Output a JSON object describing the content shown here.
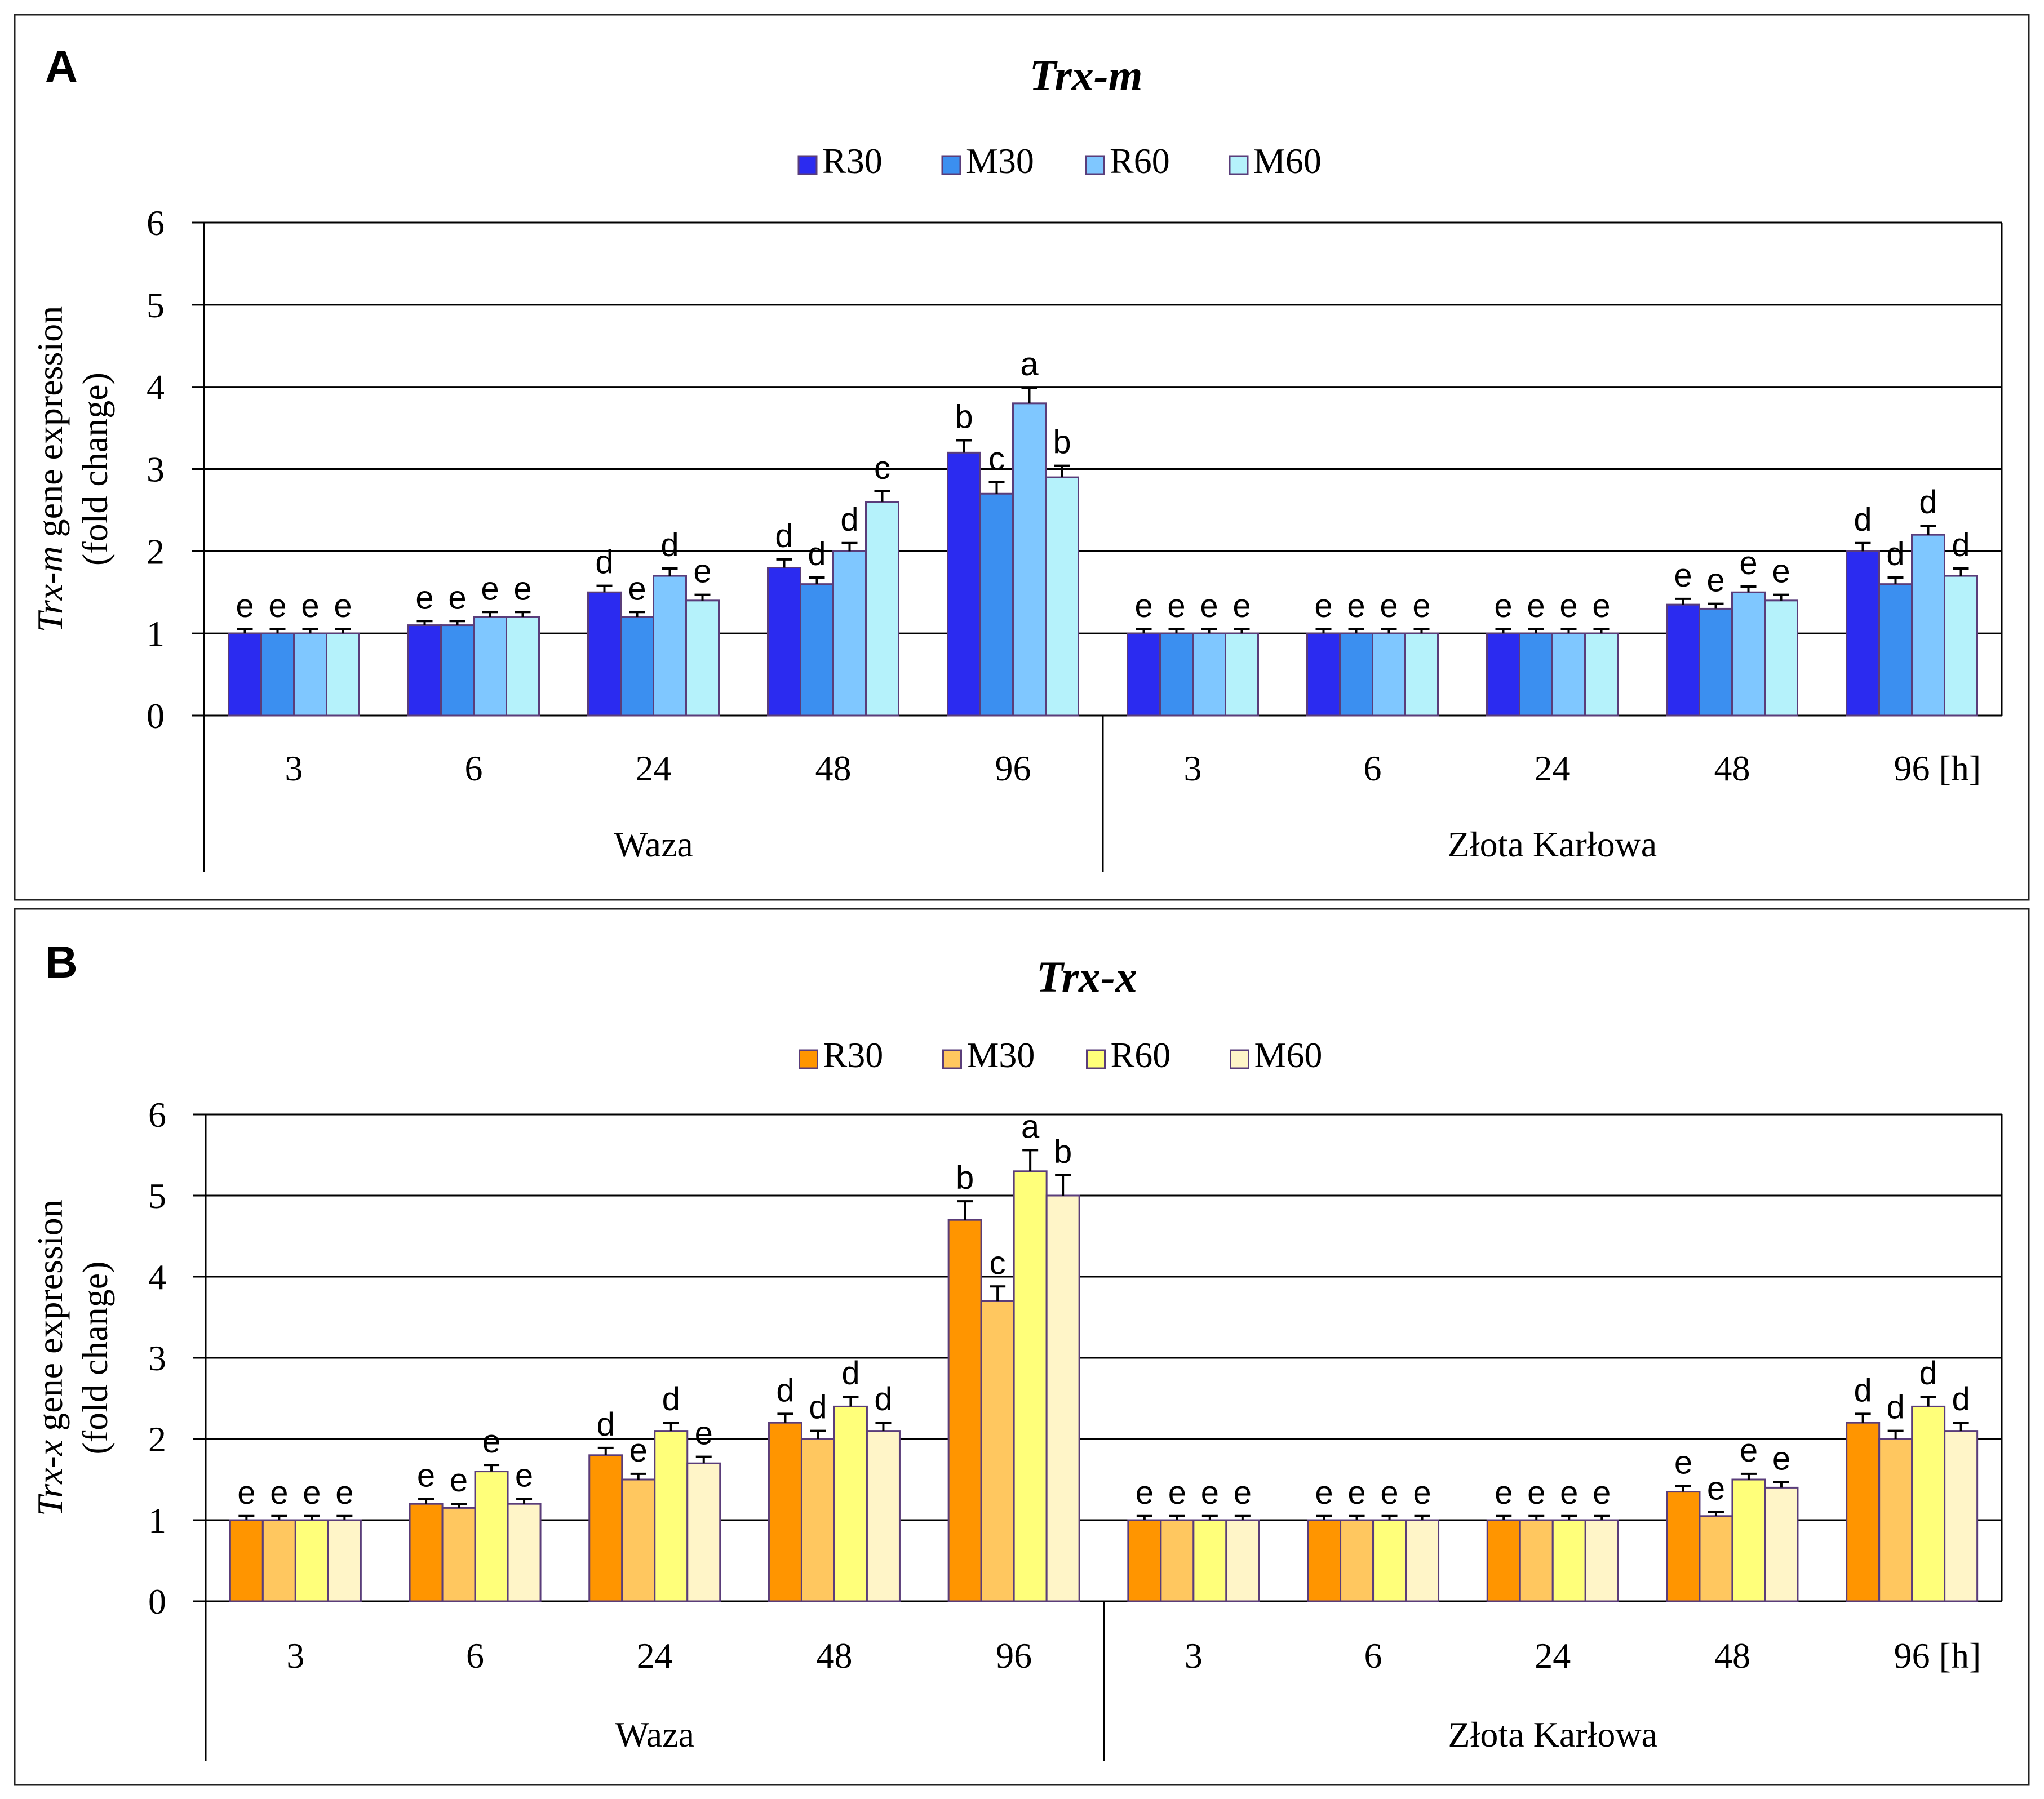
{
  "chart_data": [
    {
      "type": "bar",
      "panel_letter": "A",
      "title": "Trx-m",
      "ylabel_gene": "Trx-m",
      "ylabel_rest": " gene expression",
      "ylabel_line2": "(fold change)",
      "ylim": [
        0,
        6
      ],
      "yticks": [
        "0",
        "1",
        "2",
        "3",
        "4",
        "5",
        "6"
      ],
      "grid": true,
      "legend_position": "top-center",
      "time_labels": [
        "3",
        "6",
        "24",
        "48",
        "96",
        "3",
        "6",
        "24",
        "48",
        "96"
      ],
      "unit_label": "[h]",
      "groups": [
        "Waza",
        "Złota Karłowa"
      ],
      "series": [
        {
          "name": "R30",
          "color": "#2b2bf0",
          "values": [
            1.0,
            1.1,
            1.5,
            1.8,
            3.2,
            1.0,
            1.0,
            1.0,
            1.35,
            2.0
          ],
          "errors": [
            0.05,
            0.05,
            0.08,
            0.1,
            0.15,
            0.05,
            0.05,
            0.05,
            0.07,
            0.1
          ],
          "letters": [
            "e",
            "e",
            "d",
            "d",
            "b",
            "e",
            "e",
            "e",
            "e",
            "d"
          ]
        },
        {
          "name": "M30",
          "color": "#3b8ff0",
          "values": [
            1.0,
            1.1,
            1.2,
            1.6,
            2.7,
            1.0,
            1.0,
            1.0,
            1.3,
            1.6
          ],
          "errors": [
            0.05,
            0.05,
            0.06,
            0.08,
            0.14,
            0.05,
            0.05,
            0.05,
            0.06,
            0.08
          ],
          "letters": [
            "e",
            "e",
            "e",
            "d",
            "c",
            "e",
            "e",
            "e",
            "e",
            "d"
          ]
        },
        {
          "name": "R60",
          "color": "#7fc7ff",
          "values": [
            1.0,
            1.2,
            1.7,
            2.0,
            3.8,
            1.0,
            1.0,
            1.0,
            1.5,
            2.2
          ],
          "errors": [
            0.05,
            0.06,
            0.09,
            0.1,
            0.19,
            0.05,
            0.05,
            0.05,
            0.07,
            0.11
          ],
          "letters": [
            "e",
            "e",
            "d",
            "d",
            "a",
            "e",
            "e",
            "e",
            "e",
            "d"
          ]
        },
        {
          "name": "M60",
          "color": "#b5f2fb",
          "values": [
            1.0,
            1.2,
            1.4,
            2.6,
            2.9,
            1.0,
            1.0,
            1.0,
            1.4,
            1.7
          ],
          "errors": [
            0.05,
            0.06,
            0.07,
            0.13,
            0.14,
            0.05,
            0.05,
            0.05,
            0.07,
            0.09
          ],
          "letters": [
            "e",
            "e",
            "e",
            "c",
            "b",
            "e",
            "e",
            "e",
            "e",
            "d"
          ]
        }
      ]
    },
    {
      "type": "bar",
      "panel_letter": "B",
      "title": "Trx-x",
      "ylabel_gene": "Trx-x",
      "ylabel_rest": " gene expression",
      "ylabel_line2": "(fold change)",
      "ylim": [
        0,
        6
      ],
      "yticks": [
        "0",
        "1",
        "2",
        "3",
        "4",
        "5",
        "6"
      ],
      "grid": true,
      "legend_position": "top-center",
      "time_labels": [
        "3",
        "6",
        "24",
        "48",
        "96",
        "3",
        "6",
        "24",
        "48",
        "96"
      ],
      "unit_label": "[h]",
      "groups": [
        "Waza",
        "Złota Karłowa"
      ],
      "series": [
        {
          "name": "R30",
          "color": "#ff9500",
          "values": [
            1.0,
            1.2,
            1.8,
            2.2,
            4.7,
            1.0,
            1.0,
            1.0,
            1.35,
            2.2
          ],
          "errors": [
            0.05,
            0.06,
            0.09,
            0.11,
            0.23,
            0.05,
            0.05,
            0.05,
            0.07,
            0.11
          ],
          "letters": [
            "e",
            "e",
            "d",
            "d",
            "b",
            "e",
            "e",
            "e",
            "e",
            "d"
          ]
        },
        {
          "name": "M30",
          "color": "#ffc75f",
          "values": [
            1.0,
            1.15,
            1.5,
            2.0,
            3.7,
            1.0,
            1.0,
            1.0,
            1.05,
            2.0
          ],
          "errors": [
            0.05,
            0.05,
            0.07,
            0.1,
            0.18,
            0.05,
            0.05,
            0.05,
            0.05,
            0.1
          ],
          "letters": [
            "e",
            "e",
            "e",
            "d",
            "c",
            "e",
            "e",
            "e",
            "e",
            "d"
          ]
        },
        {
          "name": "R60",
          "color": "#ffff7a",
          "values": [
            1.0,
            1.6,
            2.1,
            2.4,
            5.3,
            1.0,
            1.0,
            1.0,
            1.5,
            2.4
          ],
          "errors": [
            0.05,
            0.08,
            0.1,
            0.12,
            0.26,
            0.05,
            0.05,
            0.05,
            0.07,
            0.12
          ],
          "letters": [
            "e",
            "e",
            "d",
            "d",
            "a",
            "e",
            "e",
            "e",
            "e",
            "d"
          ]
        },
        {
          "name": "M60",
          "color": "#fff5c8",
          "values": [
            1.0,
            1.2,
            1.7,
            2.1,
            5.0,
            1.0,
            1.0,
            1.0,
            1.4,
            2.1
          ],
          "errors": [
            0.05,
            0.06,
            0.08,
            0.1,
            0.25,
            0.05,
            0.05,
            0.05,
            0.07,
            0.1
          ],
          "letters": [
            "e",
            "e",
            "e",
            "d",
            "b",
            "e",
            "e",
            "e",
            "e",
            "d"
          ]
        }
      ]
    }
  ]
}
